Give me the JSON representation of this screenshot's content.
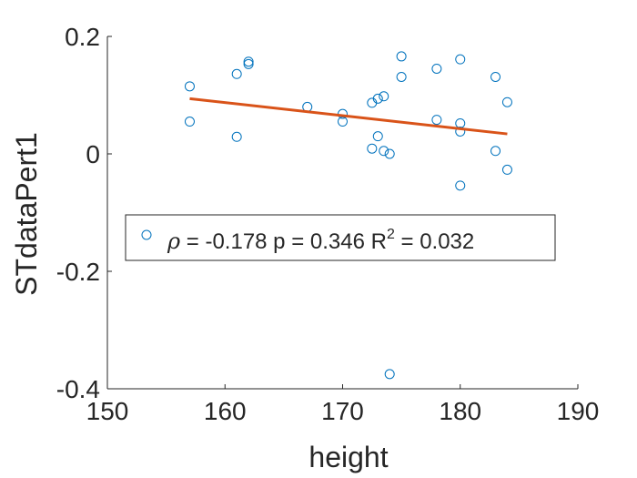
{
  "chart_data": {
    "type": "scatter",
    "xlabel": "height",
    "ylabel": "STdataPert1",
    "xlim": [
      150,
      190
    ],
    "ylim": [
      -0.4,
      0.2
    ],
    "x_ticks": [
      "150",
      "160",
      "170",
      "180",
      "190"
    ],
    "y_ticks": [
      "0.2",
      "0",
      "-0.2",
      "-0.4"
    ],
    "grid": false,
    "legend_position": "middle-left",
    "colors": {
      "points": "#0072BD",
      "fit_line": "#D95319",
      "axis": "#262626"
    },
    "points": [
      {
        "x": 157,
        "y": 0.115
      },
      {
        "x": 157,
        "y": 0.055
      },
      {
        "x": 161,
        "y": 0.136
      },
      {
        "x": 161,
        "y": 0.029
      },
      {
        "x": 162,
        "y": 0.157
      },
      {
        "x": 162,
        "y": 0.153
      },
      {
        "x": 167,
        "y": 0.08
      },
      {
        "x": 170,
        "y": 0.068
      },
      {
        "x": 170,
        "y": 0.055
      },
      {
        "x": 172.5,
        "y": 0.087
      },
      {
        "x": 172.5,
        "y": 0.009
      },
      {
        "x": 173,
        "y": 0.094
      },
      {
        "x": 173,
        "y": 0.03
      },
      {
        "x": 173.5,
        "y": 0.098
      },
      {
        "x": 173.5,
        "y": 0.005
      },
      {
        "x": 174,
        "y": 0.0
      },
      {
        "x": 174,
        "y": -0.375
      },
      {
        "x": 175,
        "y": 0.166
      },
      {
        "x": 175,
        "y": 0.131
      },
      {
        "x": 178,
        "y": 0.145
      },
      {
        "x": 178,
        "y": 0.058
      },
      {
        "x": 180,
        "y": 0.161
      },
      {
        "x": 180,
        "y": 0.052
      },
      {
        "x": 180,
        "y": 0.038
      },
      {
        "x": 180,
        "y": -0.054
      },
      {
        "x": 183,
        "y": 0.131
      },
      {
        "x": 183,
        "y": 0.005
      },
      {
        "x": 184,
        "y": 0.088
      },
      {
        "x": 184,
        "y": -0.027
      }
    ],
    "fit_line": {
      "x": [
        157,
        184
      ],
      "y": [
        0.094,
        0.034
      ]
    },
    "legend": {
      "rho_symbol": "ρ",
      "rho_text": " = -0.178 p = 0.346 R",
      "r2_exponent": "2",
      "r2_text": " = 0.032"
    }
  }
}
